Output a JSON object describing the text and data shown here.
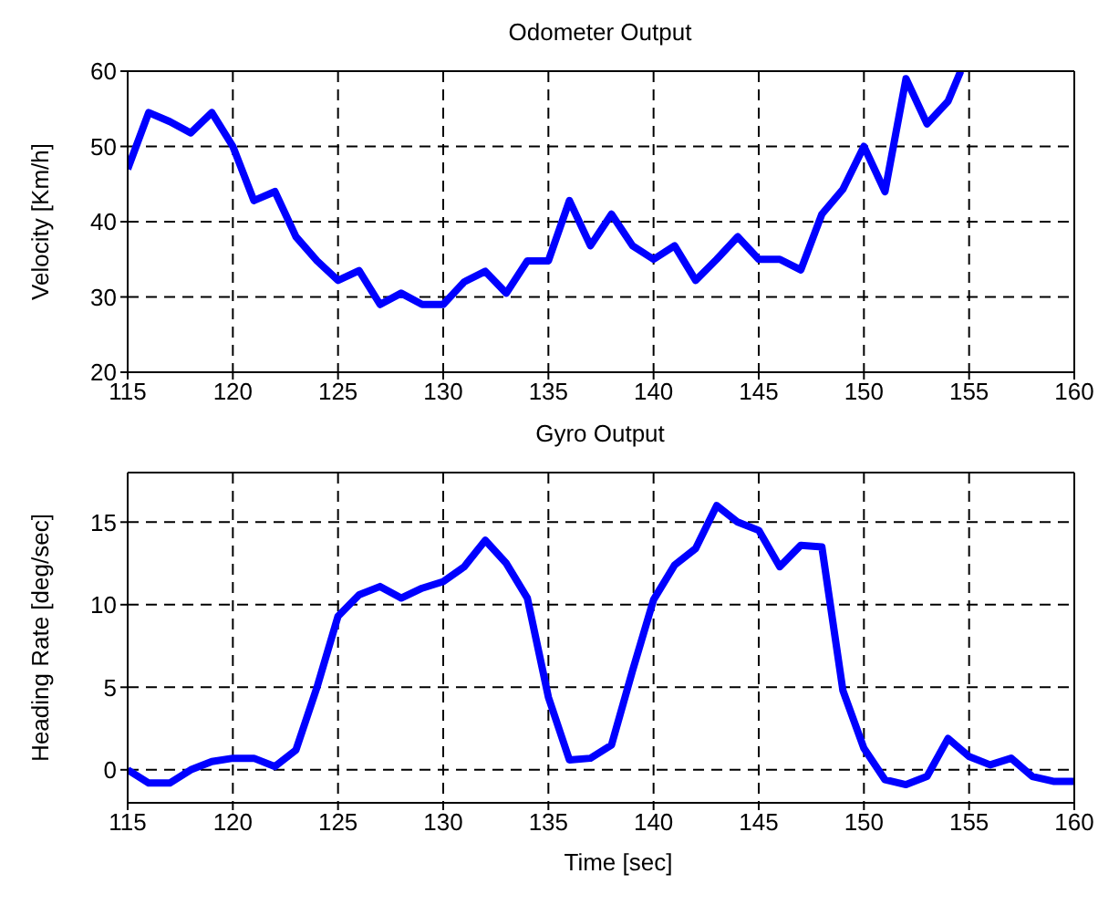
{
  "chart_data": [
    {
      "type": "line",
      "title": "Odometer Output",
      "ylabel": "Velocity [Km/h]",
      "xlim": [
        115,
        160
      ],
      "xticks": [
        115,
        120,
        125,
        130,
        135,
        140,
        145,
        150,
        155,
        160
      ],
      "ylim": [
        20,
        60
      ],
      "yticks": [
        20,
        30,
        40,
        50,
        60
      ],
      "grid": true,
      "series": [
        {
          "color": "#0000ff",
          "x": [
            115,
            116,
            117,
            118,
            119,
            120,
            121,
            122,
            123,
            124,
            125,
            126,
            127,
            128,
            129,
            130,
            131,
            132,
            133,
            134,
            135,
            136,
            137,
            138,
            139,
            140,
            141,
            142,
            143,
            144,
            145,
            146,
            147,
            148,
            149,
            150,
            151,
            152,
            153,
            154,
            154.6
          ],
          "values": [
            47,
            54.5,
            53.3,
            51.8,
            54.5,
            50,
            42.8,
            44,
            38,
            34.8,
            32.2,
            33.5,
            29,
            30.5,
            29,
            29,
            32,
            33.4,
            30.5,
            34.8,
            34.8,
            42.8,
            36.8,
            41,
            36.8,
            35,
            36.8,
            32.2,
            35,
            38,
            35,
            35,
            33.6,
            41,
            44.3,
            50,
            44,
            59,
            53,
            56,
            60
          ]
        }
      ]
    },
    {
      "type": "line",
      "title": "Gyro Output",
      "xlabel": "Time [sec]",
      "ylabel": "Heading Rate [deg/sec]",
      "xlim": [
        115,
        160
      ],
      "xticks": [
        115,
        120,
        125,
        130,
        135,
        140,
        145,
        150,
        155,
        160
      ],
      "ylim": [
        -2,
        18
      ],
      "yticks": [
        0,
        5,
        10,
        15
      ],
      "grid": true,
      "series": [
        {
          "color": "#0000ff",
          "x": [
            115,
            116,
            117,
            118,
            119,
            120,
            121,
            122,
            123,
            124,
            125,
            126,
            127,
            128,
            129,
            130,
            131,
            132,
            133,
            134,
            135,
            136,
            137,
            138,
            139,
            140,
            141,
            142,
            143,
            144,
            145,
            146,
            147,
            148,
            149,
            150,
            151,
            152,
            153,
            154,
            155,
            156,
            157,
            158,
            159,
            160
          ],
          "values": [
            0,
            -0.8,
            -0.8,
            0,
            0.5,
            0.7,
            0.7,
            0.2,
            1.2,
            5,
            9.3,
            10.6,
            11.1,
            10.4,
            11,
            11.4,
            12.3,
            13.9,
            12.5,
            10.4,
            4.4,
            0.6,
            0.7,
            1.5,
            6,
            10.3,
            12.4,
            13.4,
            16,
            15,
            14.5,
            12.3,
            13.6,
            13.5,
            4.8,
            1.3,
            -0.6,
            -0.9,
            -0.4,
            1.9,
            0.8,
            0.3,
            0.7,
            -0.4,
            -0.7,
            -0.7
          ]
        }
      ]
    }
  ]
}
